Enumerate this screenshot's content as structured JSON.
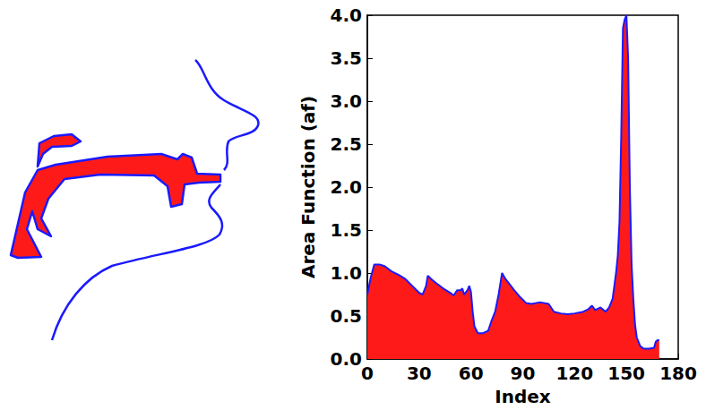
{
  "chart_data": {
    "type": "area",
    "xlabel": "Index",
    "ylabel": "Area Function (af)",
    "x": [
      0,
      2,
      4,
      7,
      10,
      14,
      18,
      22,
      26,
      30,
      32,
      34,
      35,
      37,
      40,
      44,
      48,
      50,
      52,
      54,
      55,
      56,
      58,
      59,
      60,
      61,
      62,
      64,
      67,
      70,
      72,
      74,
      76,
      78,
      80,
      82,
      85,
      88,
      92,
      95,
      100,
      105,
      108,
      112,
      116,
      120,
      125,
      128,
      130,
      132,
      135,
      138,
      140,
      142,
      143,
      144,
      145,
      146,
      147,
      148,
      149,
      150,
      151,
      152,
      153,
      154,
      155,
      156,
      158,
      160,
      163,
      166,
      167,
      168,
      169
    ],
    "values": [
      0.75,
      0.95,
      1.1,
      1.1,
      1.08,
      1.02,
      0.98,
      0.93,
      0.85,
      0.77,
      0.75,
      0.85,
      0.97,
      0.93,
      0.88,
      0.82,
      0.77,
      0.74,
      0.8,
      0.8,
      0.82,
      0.75,
      0.8,
      0.85,
      0.78,
      0.55,
      0.38,
      0.3,
      0.3,
      0.33,
      0.45,
      0.55,
      0.75,
      1.0,
      0.93,
      0.88,
      0.8,
      0.73,
      0.65,
      0.64,
      0.66,
      0.64,
      0.55,
      0.53,
      0.52,
      0.53,
      0.55,
      0.58,
      0.62,
      0.57,
      0.6,
      0.55,
      0.6,
      0.7,
      0.85,
      1.0,
      1.2,
      1.6,
      2.6,
      3.85,
      3.95,
      4.0,
      3.5,
      2.0,
      1.1,
      0.7,
      0.4,
      0.25,
      0.15,
      0.12,
      0.12,
      0.13,
      0.2,
      0.22,
      0.22
    ],
    "color": "#ff1a1a",
    "xlim": [
      0,
      180
    ],
    "ylim": [
      0,
      4
    ],
    "xticks": [
      0,
      30,
      60,
      90,
      120,
      150,
      180
    ],
    "yticks": [
      {
        "value": 0,
        "label": "0.0"
      },
      {
        "value": 0.5,
        "label": "0.5"
      },
      {
        "value": 1,
        "label": "1.0"
      },
      {
        "value": 1.5,
        "label": "1.5"
      },
      {
        "value": 2,
        "label": "2.0"
      },
      {
        "value": 2.5,
        "label": "2.5"
      },
      {
        "value": 3,
        "label": "3.0"
      },
      {
        "value": 3.5,
        "label": "3.5"
      },
      {
        "value": 4,
        "label": "4.0"
      }
    ],
    "grid": false
  }
}
